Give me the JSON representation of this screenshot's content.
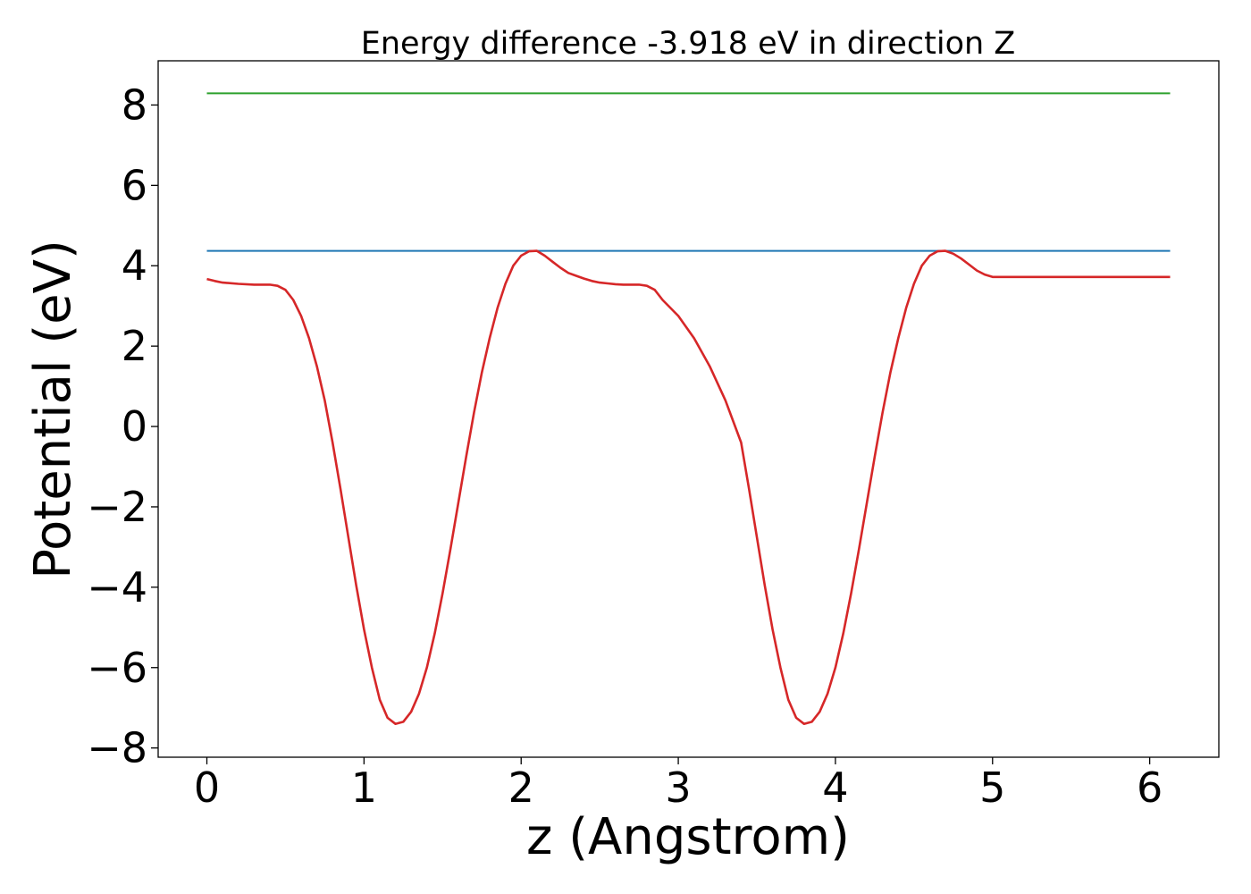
{
  "chart_data": {
    "type": "line",
    "title": "Energy difference -3.918 eV in direction Z",
    "xlabel": "z (Angstrom)",
    "ylabel": "Potential (eV)",
    "xlim": [
      -0.31,
      6.44
    ],
    "ylim": [
      -8.23,
      9.1
    ],
    "xticks": [
      0,
      1,
      2,
      3,
      4,
      5,
      6
    ],
    "xtick_labels": [
      "0",
      "1",
      "2",
      "3",
      "4",
      "5",
      "6"
    ],
    "yticks": [
      8,
      6,
      4,
      2,
      0,
      -2,
      -4,
      -6,
      -8
    ],
    "ytick_labels": [
      "8",
      "6",
      "4",
      "2",
      "0",
      "−2",
      "−4",
      "−6",
      "−8"
    ],
    "grid": false,
    "series": [
      {
        "color": "#2ca02c",
        "x": [
          0,
          6.13
        ],
        "y": [
          8.29,
          8.29
        ]
      },
      {
        "color": "#1f77b4",
        "x": [
          0,
          6.13
        ],
        "y": [
          4.37,
          4.37
        ]
      },
      {
        "color": "#d62728",
        "x": [
          0,
          0.05,
          0.1,
          0.2,
          0.3,
          0.35,
          0.4,
          0.45,
          0.5,
          0.55,
          0.6,
          0.65,
          0.7,
          0.75,
          0.8,
          0.85,
          0.9,
          0.95,
          1.0,
          1.05,
          1.1,
          1.15,
          1.2,
          1.25,
          1.3,
          1.35,
          1.4,
          1.45,
          1.5,
          1.55,
          1.6,
          1.65,
          1.7,
          1.75,
          1.8,
          1.85,
          1.9,
          1.95,
          2.0,
          2.05,
          2.1,
          2.15,
          2.2,
          2.25,
          2.3,
          2.35,
          2.4,
          2.45,
          2.5,
          2.55,
          2.6,
          2.65,
          2.7,
          2.75,
          2.8,
          2.85,
          2.9,
          3.0,
          3.1,
          3.2,
          3.3,
          3.4,
          3.45,
          3.5,
          3.55,
          3.6,
          3.65,
          3.7,
          3.75,
          3.8,
          3.85,
          3.9,
          3.95,
          4.0,
          4.05,
          4.1,
          4.15,
          4.2,
          4.25,
          4.3,
          4.35,
          4.4,
          4.45,
          4.5,
          4.55,
          4.6,
          4.65,
          4.7,
          4.75,
          4.8,
          4.85,
          4.9,
          4.95,
          5.0,
          5.05,
          5.1,
          5.15,
          5.2,
          5.25,
          5.3,
          5.35,
          5.4,
          5.45,
          5.5,
          5.55,
          5.6,
          5.65,
          5.7,
          5.75,
          5.8,
          5.85,
          5.9,
          5.95,
          6.0,
          6.05,
          6.13
        ],
        "y": [
          3.67,
          3.62,
          3.58,
          3.55,
          3.53,
          3.53,
          3.53,
          3.5,
          3.4,
          3.15,
          2.75,
          2.2,
          1.5,
          0.65,
          -0.4,
          -1.55,
          -2.75,
          -3.95,
          -5.05,
          -6.0,
          -6.8,
          -7.25,
          -7.4,
          -7.35,
          -7.1,
          -6.65,
          -6.0,
          -5.15,
          -4.15,
          -3.05,
          -1.9,
          -0.75,
          0.35,
          1.35,
          2.2,
          2.95,
          3.55,
          4.0,
          4.25,
          4.36,
          4.37,
          4.25,
          4.1,
          3.95,
          3.82,
          3.75,
          3.68,
          3.62,
          3.58,
          3.56,
          3.54,
          3.53,
          3.53,
          3.53,
          3.5,
          3.4,
          3.15,
          2.75,
          2.2,
          1.5,
          0.65,
          -0.4,
          -1.55,
          -2.75,
          -3.95,
          -5.05,
          -6.0,
          -6.8,
          -7.25,
          -7.4,
          -7.35,
          -7.1,
          -6.65,
          -6.0,
          -5.15,
          -4.15,
          -3.05,
          -1.9,
          -0.75,
          0.35,
          1.35,
          2.2,
          2.95,
          3.55,
          4.0,
          4.25,
          4.36,
          4.37,
          4.3,
          4.18,
          4.03,
          3.88,
          3.78,
          3.72,
          3.72,
          3.72,
          3.72,
          3.72,
          3.72,
          3.72,
          3.72,
          3.72,
          3.72,
          3.72,
          3.72,
          3.72,
          3.72,
          3.72,
          3.72,
          3.72,
          3.72,
          3.72,
          3.72,
          3.72,
          3.72,
          3.72
        ]
      }
    ]
  }
}
